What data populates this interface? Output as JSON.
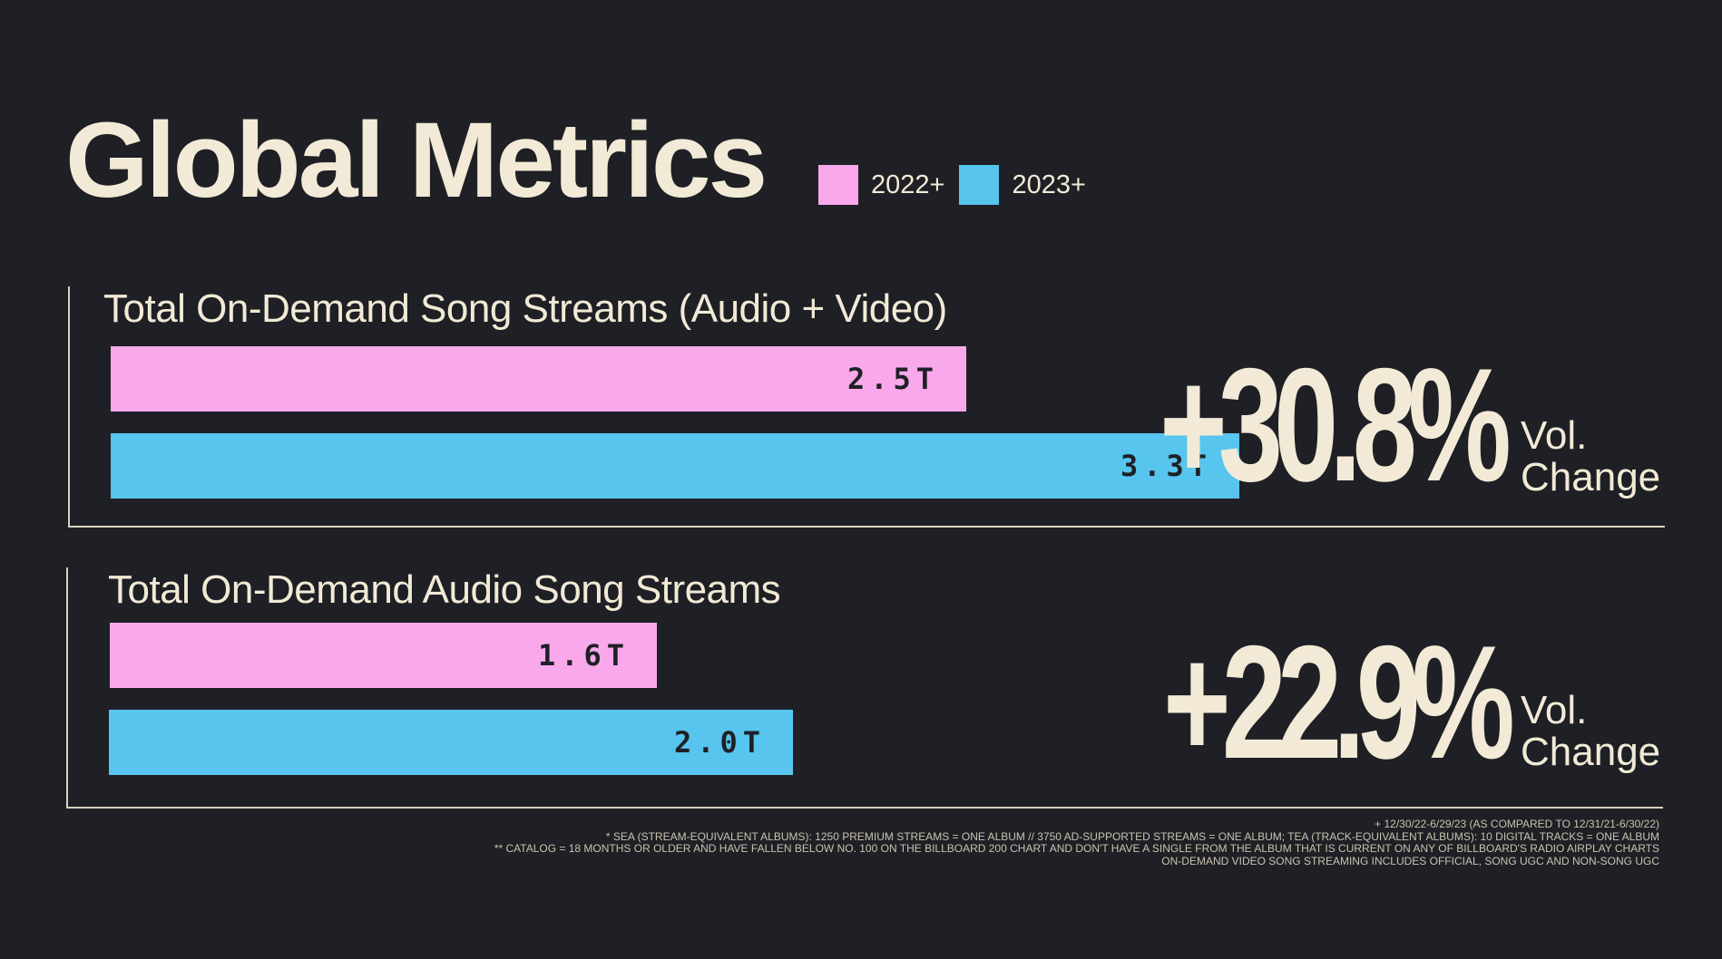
{
  "title": "Global Metrics",
  "colors": {
    "series_2022": "#f9a8ec",
    "series_2023": "#57c5ee",
    "text": "#f2ead6",
    "background": "#1f2025"
  },
  "chart_data": [
    {
      "type": "bar",
      "title": "Total On-Demand Song Streams (Audio + Video)",
      "categories": [
        "Total On-Demand Song Streams (Audio + Video)"
      ],
      "series": [
        {
          "name": "2022+",
          "values": [
            2.5
          ],
          "label": "2.5T"
        },
        {
          "name": "2023+",
          "values": [
            3.3
          ],
          "label": "3.3T"
        }
      ],
      "unit": "T",
      "change": {
        "value": "+30.8%",
        "label_line1": "Vol.",
        "label_line2": "Change"
      },
      "legend": "top-right",
      "grid": false
    },
    {
      "type": "bar",
      "title": "Total On-Demand Audio Song Streams",
      "categories": [
        "Total On-Demand Audio Song Streams"
      ],
      "series": [
        {
          "name": "2022+",
          "values": [
            1.6
          ],
          "label": "1.6T"
        },
        {
          "name": "2023+",
          "values": [
            2.0
          ],
          "label": "2.0T"
        }
      ],
      "unit": "T",
      "change": {
        "value": "+22.9%",
        "label_line1": "Vol.",
        "label_line2": "Change"
      },
      "legend": "top-right",
      "grid": false
    }
  ],
  "legend": [
    {
      "label": "2022+",
      "color": "#f9a8ec"
    },
    {
      "label": "2023+",
      "color": "#57c5ee"
    }
  ],
  "footnotes": [
    "+ 12/30/22-6/29/23 (AS COMPARED TO 12/31/21-6/30/22)",
    "* SEA (STREAM-EQUIVALENT ALBUMS): 1250 PREMIUM STREAMS = ONE ALBUM // 3750 AD-SUPPORTED STREAMS = ONE ALBUM; TEA (TRACK-EQUIVALENT ALBUMS): 10 DIGITAL TRACKS = ONE ALBUM",
    "** CATALOG = 18 MONTHS OR OLDER AND HAVE FALLEN BELOW NO. 100 ON THE BILLBOARD 200 CHART AND DON'T HAVE A SINGLE FROM THE ALBUM THAT IS CURRENT ON ANY OF BILLBOARD'S RADIO AIRPLAY CHARTS",
    "ON-DEMAND VIDEO SONG STREAMING INCLUDES OFFICIAL, SONG UGC AND NON-SONG UGC"
  ]
}
